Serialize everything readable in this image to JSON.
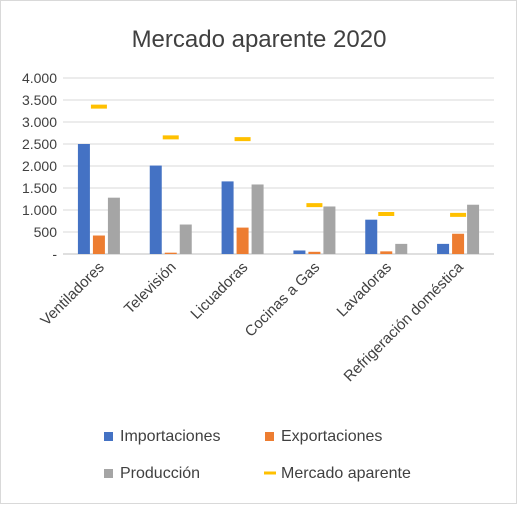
{
  "chart_data": {
    "type": "bar",
    "title": "Mercado aparente 2020",
    "categories": [
      "Ventiladores",
      "Televisión",
      "Licuadoras",
      "Cocinas a Gas",
      "Lavadoras",
      "Refrigeración doméstica"
    ],
    "series": [
      {
        "name": "Importaciones",
        "kind": "bar",
        "color": "#4472c4",
        "values": [
          2500,
          2010,
          1650,
          80,
          780,
          230
        ]
      },
      {
        "name": "Exportaciones",
        "kind": "bar",
        "color": "#ed7d31",
        "values": [
          420,
          30,
          600,
          50,
          60,
          460
        ]
      },
      {
        "name": "Producción",
        "kind": "bar",
        "color": "#a5a5a5",
        "values": [
          1280,
          670,
          1580,
          1080,
          230,
          1120
        ]
      },
      {
        "name": "Mercado aparente",
        "kind": "marker",
        "color": "#ffc000",
        "values": [
          3350,
          2650,
          2610,
          1110,
          910,
          890
        ]
      }
    ],
    "ylim": [
      0,
      4000
    ],
    "yticks": [
      0,
      500,
      1000,
      1500,
      2000,
      2500,
      3000,
      3500,
      4000
    ],
    "ytick_labels": [
      "-",
      "500",
      "1.000",
      "1.500",
      "2.000",
      "2.500",
      "3.000",
      "3.500",
      "4.000"
    ],
    "xlabel": "",
    "ylabel": "",
    "grid": true,
    "legend_position": "bottom"
  }
}
